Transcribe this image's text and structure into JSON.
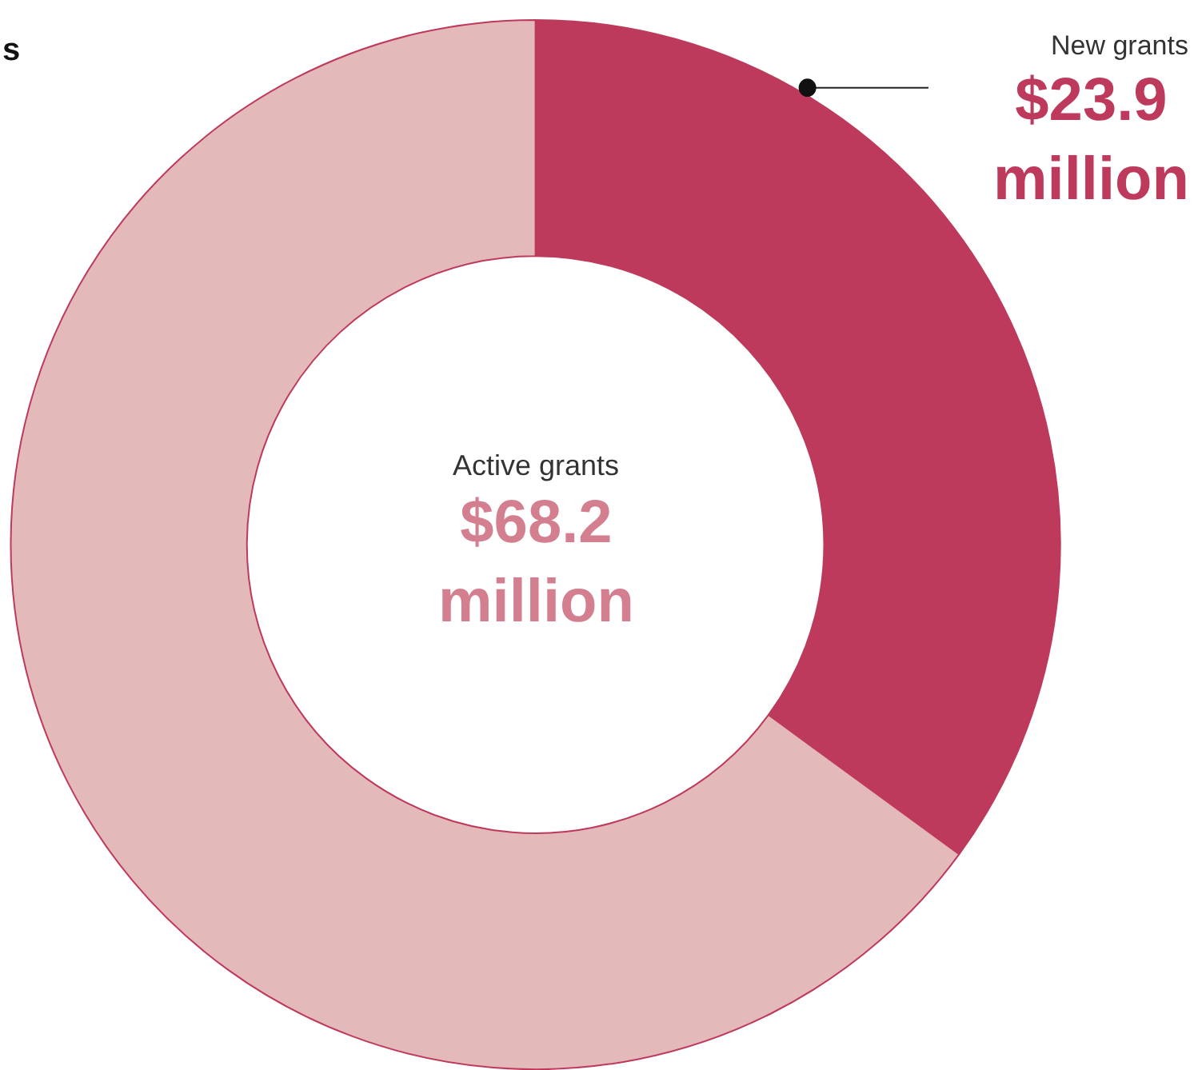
{
  "chart_data": {
    "type": "donut",
    "title": "s",
    "categories": [
      "New grants",
      null
    ],
    "values": [
      23.9,
      44.3
    ],
    "colors": [
      "#be3a5c",
      "#e3b9ba"
    ],
    "value_labels": [
      "$23.9 million",
      null
    ],
    "annotations": [
      "Active grants",
      "$68.2 million"
    ],
    "legend": false
  }
}
